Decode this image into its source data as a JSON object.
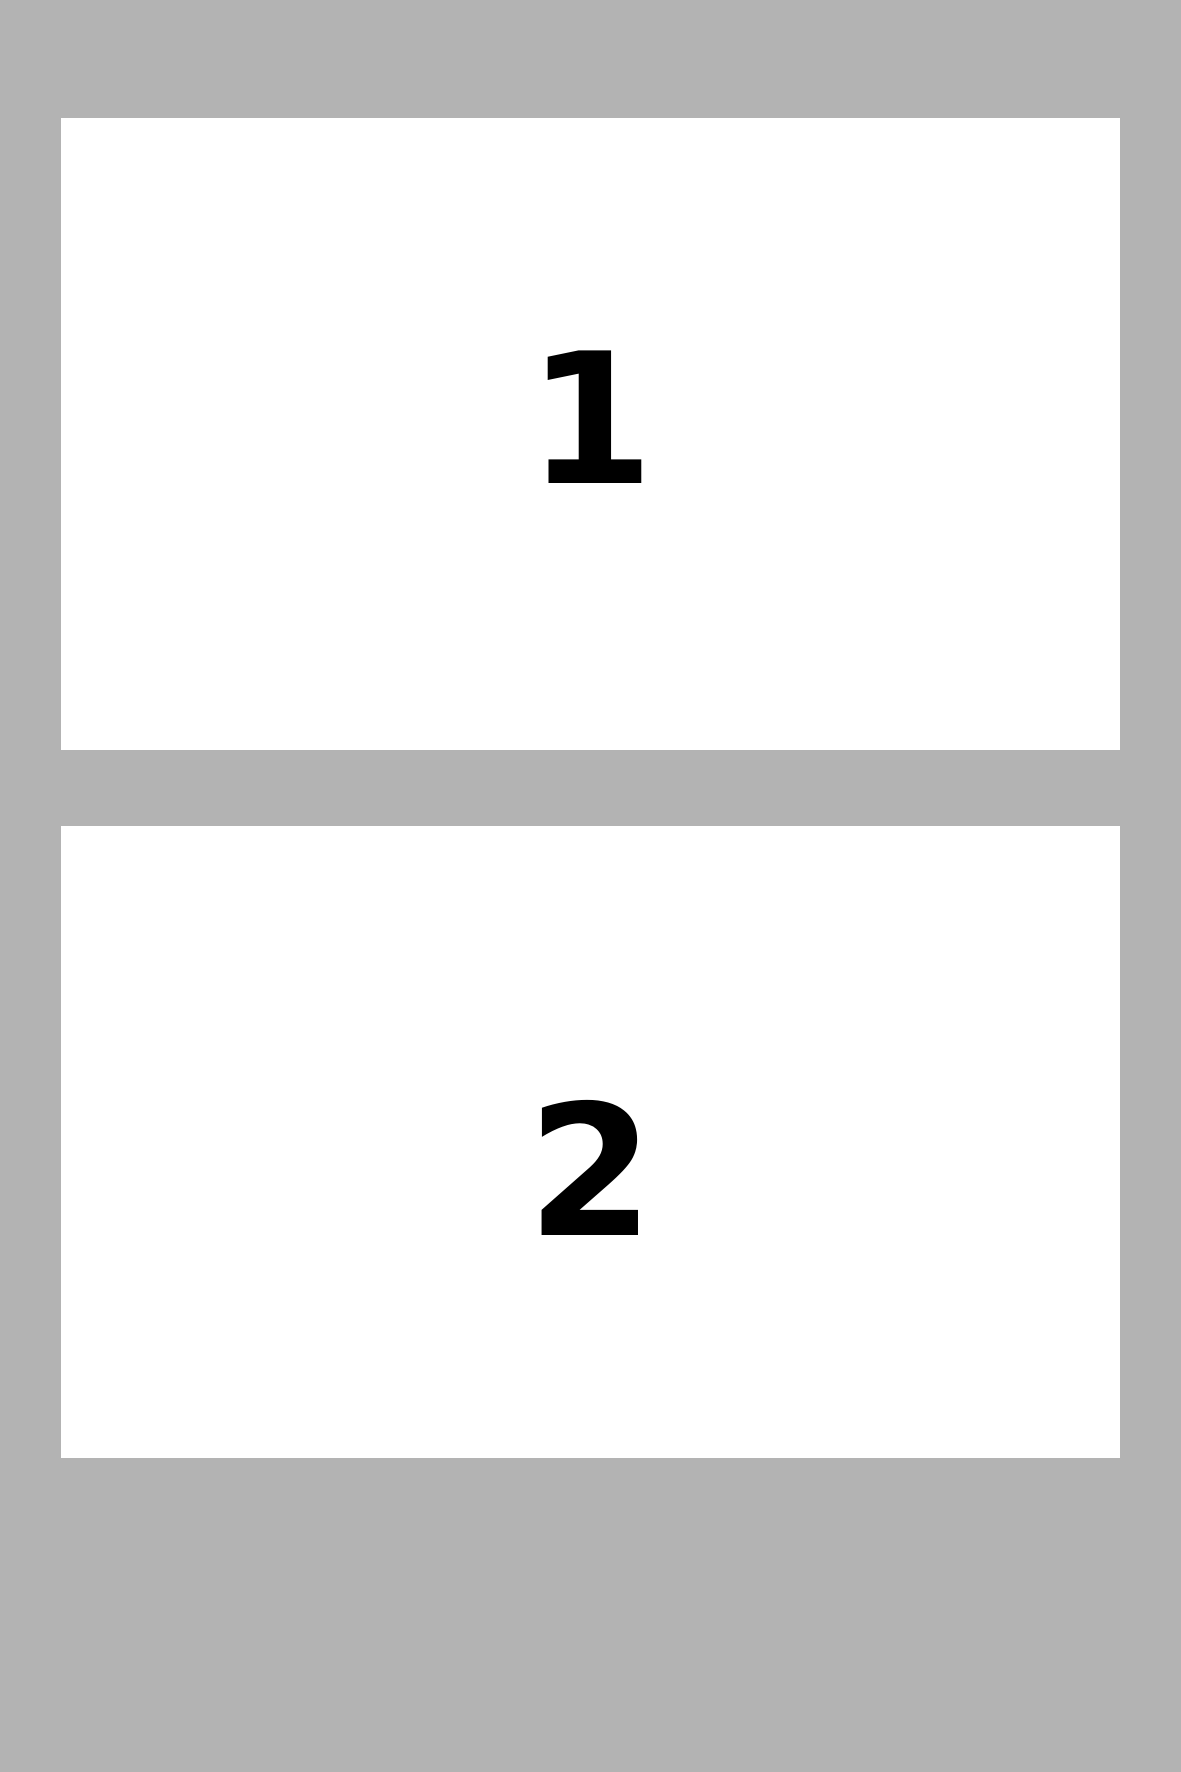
{
  "layout_panels": [
    {
      "label": "1"
    },
    {
      "label": "2"
    }
  ],
  "colors": {
    "background": "#b3b3b3",
    "panel": "#ffffff",
    "text": "#000000"
  }
}
